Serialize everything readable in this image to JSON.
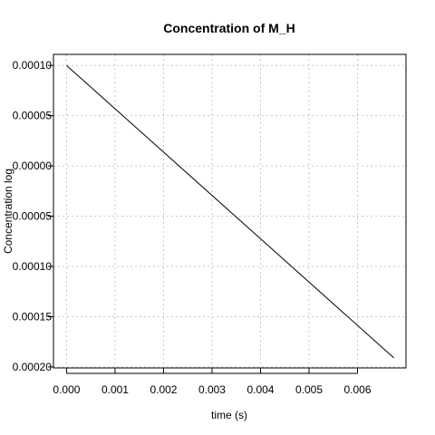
{
  "chart_data": {
    "type": "line",
    "title": "Concentration of M_H",
    "xlabel": "time (s)",
    "ylabel": "Concentration log",
    "xlim": [
      -0.00027,
      0.007
    ],
    "ylim": [
      -0.000201,
      0.000111
    ],
    "x_ticks": [
      0.0,
      0.001,
      0.002,
      0.003,
      0.004,
      0.005,
      0.006
    ],
    "x_tick_labels": [
      "0.000",
      "0.001",
      "0.002",
      "0.003",
      "0.004",
      "0.005",
      "0.006"
    ],
    "y_ticks": [
      0.0001,
      5e-05,
      0.0,
      -5e-05,
      -0.0001,
      -0.00015,
      -0.0002
    ],
    "y_tick_labels": [
      "0.00010",
      "0.00005",
      "0.00000",
      "0.00005",
      "0.00010",
      "0.00015",
      "0.00020"
    ],
    "grid": true,
    "series": [
      {
        "x": [
          0.0,
          0.00675
        ],
        "y": [
          0.0001,
          -0.000191
        ]
      }
    ]
  }
}
